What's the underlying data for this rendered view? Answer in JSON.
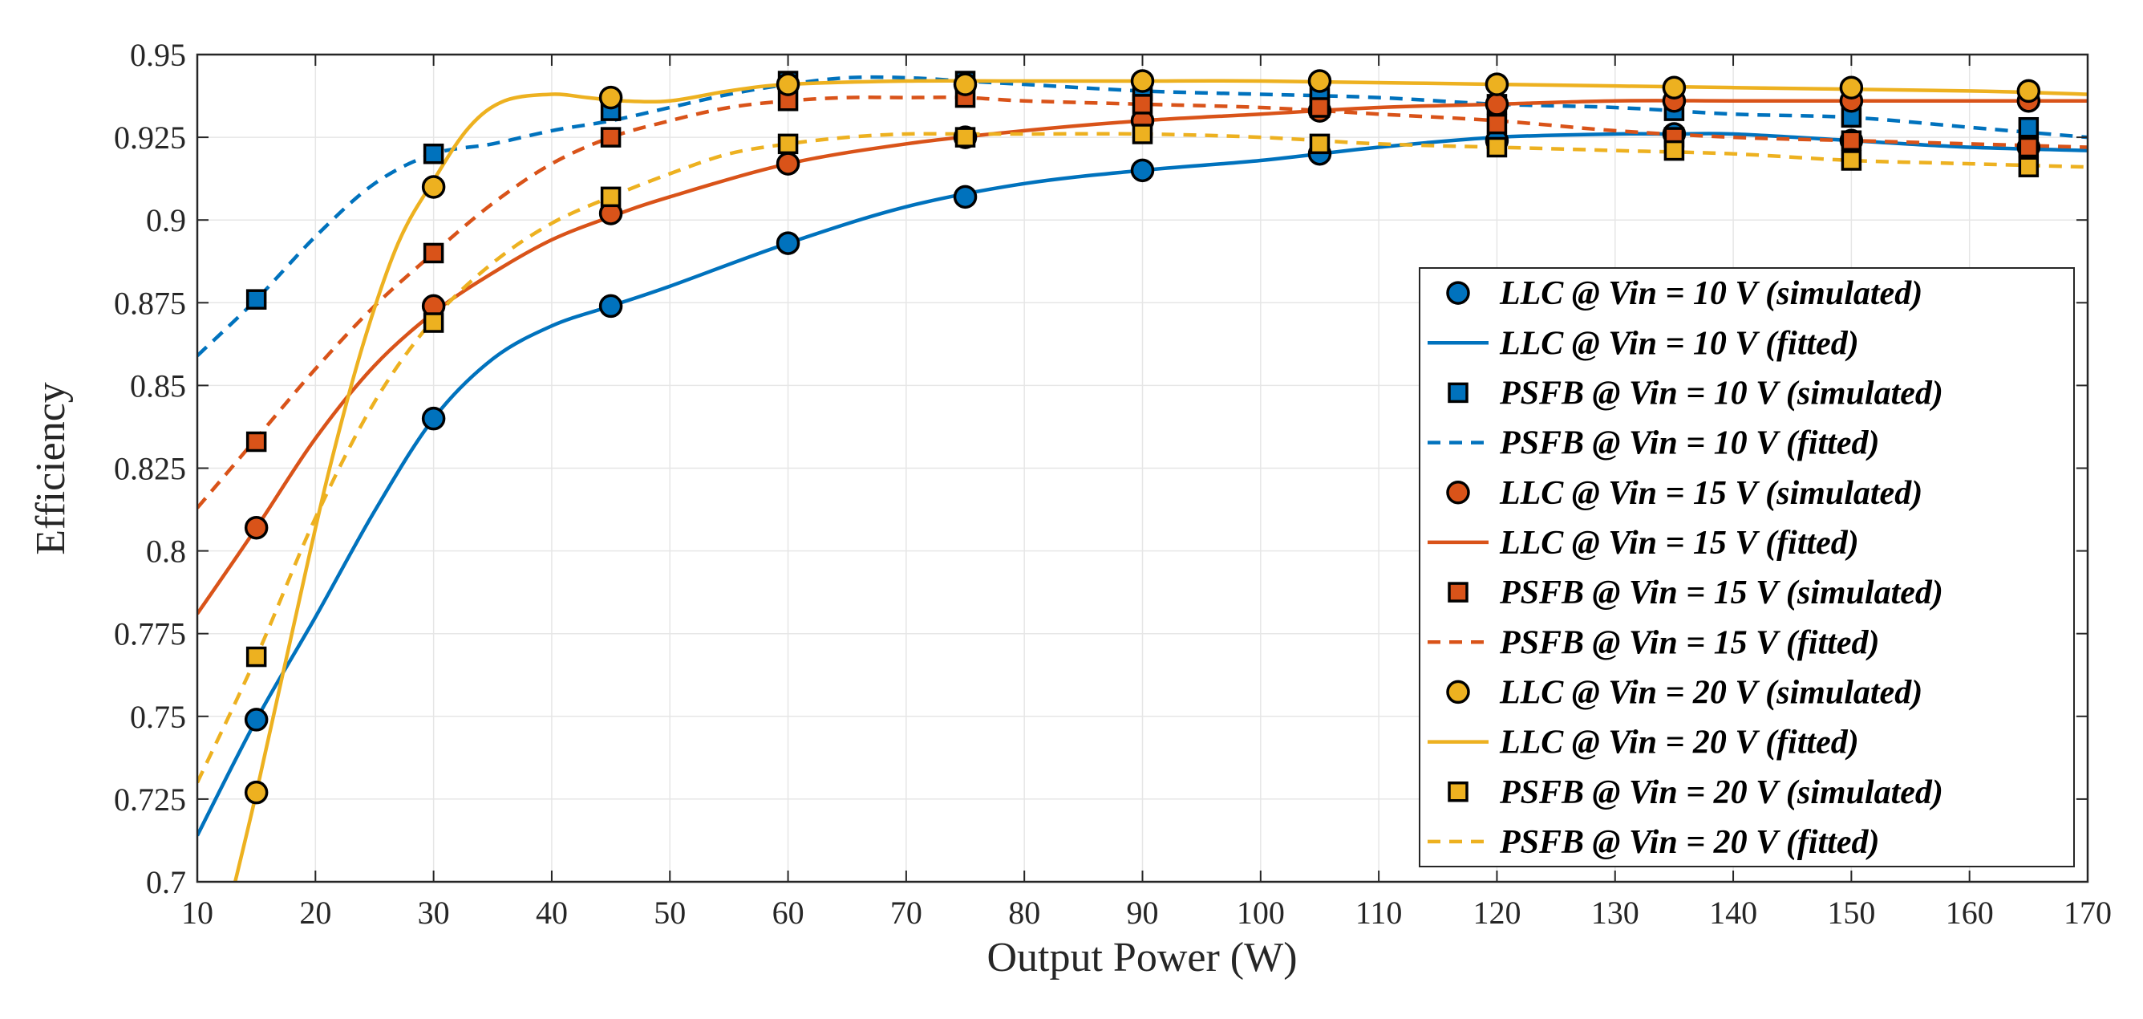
{
  "chart_data": {
    "type": "line",
    "title": "",
    "xlabel": "Output Power (W)",
    "ylabel": "Efficiency",
    "xlim": [
      10,
      170
    ],
    "ylim": [
      0.7,
      0.95
    ],
    "grid": true,
    "legend_position": "right",
    "x_ticks": [
      "10",
      "20",
      "30",
      "40",
      "50",
      "60",
      "70",
      "80",
      "90",
      "100",
      "110",
      "120",
      "130",
      "140",
      "150",
      "160",
      "170"
    ],
    "y_ticks": [
      "0.7",
      "0.725",
      "0.75",
      "0.775",
      "0.8",
      "0.825",
      "0.85",
      "0.875",
      "0.9",
      "0.925",
      "0.95"
    ],
    "x_samples": [
      15,
      30,
      45,
      60,
      75,
      90,
      105,
      120,
      135,
      150,
      165
    ],
    "series": [
      {
        "name": "LLC @ Vin = 10 V (simulated)",
        "kind": "scatter",
        "marker": "circle",
        "color": "#0072BD",
        "x": [
          15,
          30,
          45,
          60,
          75,
          90,
          105,
          120,
          135,
          150,
          165
        ],
        "values": [
          0.749,
          0.84,
          0.874,
          0.893,
          0.907,
          0.915,
          0.92,
          0.924,
          0.926,
          0.924,
          0.922
        ]
      },
      {
        "name": "LLC @ Vin = 10 V (fitted)",
        "kind": "line",
        "dash": "solid",
        "color": "#0072BD",
        "x": [
          10,
          15,
          20,
          25,
          30,
          35,
          40,
          45,
          50,
          60,
          70,
          80,
          90,
          100,
          110,
          120,
          130,
          135,
          140,
          150,
          160,
          170
        ],
        "values": [
          0.714,
          0.749,
          0.78,
          0.812,
          0.84,
          0.858,
          0.868,
          0.874,
          0.88,
          0.893,
          0.904,
          0.911,
          0.915,
          0.918,
          0.922,
          0.925,
          0.926,
          0.926,
          0.926,
          0.924,
          0.922,
          0.921
        ]
      },
      {
        "name": "PSFB @ Vin = 10 V (simulated)",
        "kind": "scatter",
        "marker": "square",
        "color": "#0072BD",
        "x": [
          15,
          30,
          45,
          60,
          75,
          90,
          105,
          120,
          135,
          150,
          165
        ],
        "values": [
          0.876,
          0.92,
          0.933,
          0.942,
          0.942,
          0.939,
          0.937,
          0.935,
          0.933,
          0.931,
          0.928
        ]
      },
      {
        "name": "PSFB @ Vin = 10 V (fitted)",
        "kind": "line",
        "dash": "dashed",
        "color": "#0072BD",
        "x": [
          10,
          15,
          20,
          25,
          30,
          35,
          40,
          45,
          50,
          55,
          60,
          65,
          70,
          75,
          80,
          90,
          100,
          110,
          120,
          130,
          140,
          150,
          160,
          170
        ],
        "values": [
          0.859,
          0.876,
          0.895,
          0.911,
          0.92,
          0.923,
          0.927,
          0.93,
          0.934,
          0.938,
          0.941,
          0.943,
          0.943,
          0.942,
          0.941,
          0.939,
          0.938,
          0.937,
          0.935,
          0.934,
          0.932,
          0.931,
          0.928,
          0.925
        ]
      },
      {
        "name": "LLC @ Vin = 15 V (simulated)",
        "kind": "scatter",
        "marker": "circle",
        "color": "#D95319",
        "x": [
          15,
          30,
          45,
          60,
          75,
          90,
          105,
          120,
          135,
          150,
          165
        ],
        "values": [
          0.807,
          0.874,
          0.902,
          0.917,
          0.925,
          0.93,
          0.933,
          0.935,
          0.936,
          0.936,
          0.936
        ]
      },
      {
        "name": "LLC @ Vin = 15 V (fitted)",
        "kind": "line",
        "dash": "solid",
        "color": "#D95319",
        "x": [
          10,
          15,
          20,
          25,
          30,
          35,
          40,
          45,
          50,
          60,
          70,
          80,
          90,
          100,
          110,
          120,
          130,
          140,
          150,
          160,
          170
        ],
        "values": [
          0.781,
          0.807,
          0.834,
          0.856,
          0.872,
          0.884,
          0.894,
          0.901,
          0.907,
          0.917,
          0.923,
          0.927,
          0.93,
          0.932,
          0.934,
          0.935,
          0.936,
          0.936,
          0.936,
          0.936,
          0.936
        ]
      },
      {
        "name": "PSFB @ Vin = 15 V (simulated)",
        "kind": "scatter",
        "marker": "square",
        "color": "#D95319",
        "x": [
          15,
          30,
          45,
          60,
          75,
          90,
          105,
          120,
          135,
          150,
          165
        ],
        "values": [
          0.833,
          0.89,
          0.925,
          0.936,
          0.937,
          0.935,
          0.934,
          0.929,
          0.925,
          0.924,
          0.922
        ]
      },
      {
        "name": "PSFB @ Vin = 15 V (fitted)",
        "kind": "line",
        "dash": "dashed",
        "color": "#D95319",
        "x": [
          10,
          15,
          20,
          25,
          30,
          35,
          40,
          45,
          50,
          55,
          60,
          65,
          70,
          75,
          80,
          90,
          100,
          110,
          120,
          130,
          140,
          150,
          160,
          170
        ],
        "values": [
          0.813,
          0.834,
          0.855,
          0.874,
          0.89,
          0.905,
          0.917,
          0.925,
          0.93,
          0.934,
          0.936,
          0.937,
          0.937,
          0.937,
          0.936,
          0.935,
          0.934,
          0.932,
          0.93,
          0.927,
          0.925,
          0.924,
          0.923,
          0.922
        ]
      },
      {
        "name": "LLC @ Vin = 20 V (simulated)",
        "kind": "scatter",
        "marker": "circle",
        "color": "#EDB120",
        "x": [
          15,
          30,
          45,
          60,
          75,
          90,
          105,
          120,
          135,
          150,
          165
        ],
        "values": [
          0.727,
          0.91,
          0.937,
          0.941,
          0.941,
          0.942,
          0.942,
          0.941,
          0.94,
          0.94,
          0.939
        ]
      },
      {
        "name": "LLC @ Vin = 20 V (fitted)",
        "kind": "line",
        "dash": "solid",
        "color": "#EDB120",
        "x": [
          13,
          15,
          18,
          21,
          24,
          27,
          30,
          33,
          36,
          40,
          43,
          46,
          50,
          55,
          60,
          70,
          80,
          90,
          100,
          120,
          140,
          160,
          170
        ],
        "values": [
          0.697,
          0.727,
          0.775,
          0.822,
          0.862,
          0.893,
          0.912,
          0.928,
          0.936,
          0.938,
          0.937,
          0.936,
          0.936,
          0.939,
          0.941,
          0.942,
          0.942,
          0.942,
          0.942,
          0.941,
          0.94,
          0.939,
          0.938
        ]
      },
      {
        "name": "PSFB @ Vin = 20 V (simulated)",
        "kind": "scatter",
        "marker": "square",
        "color": "#EDB120",
        "x": [
          15,
          30,
          45,
          60,
          75,
          90,
          105,
          120,
          135,
          150,
          165
        ],
        "values": [
          0.768,
          0.869,
          0.907,
          0.923,
          0.925,
          0.926,
          0.923,
          0.922,
          0.921,
          0.918,
          0.916
        ]
      },
      {
        "name": "PSFB @ Vin = 20 V (fitted)",
        "kind": "line",
        "dash": "dashed",
        "color": "#EDB120",
        "x": [
          10,
          15,
          20,
          25,
          30,
          35,
          40,
          45,
          50,
          55,
          60,
          65,
          70,
          75,
          80,
          90,
          100,
          110,
          120,
          130,
          140,
          150,
          160,
          170
        ],
        "values": [
          0.73,
          0.768,
          0.81,
          0.845,
          0.87,
          0.887,
          0.899,
          0.907,
          0.914,
          0.92,
          0.923,
          0.925,
          0.926,
          0.926,
          0.926,
          0.926,
          0.925,
          0.923,
          0.922,
          0.921,
          0.92,
          0.918,
          0.917,
          0.916
        ]
      }
    ]
  }
}
